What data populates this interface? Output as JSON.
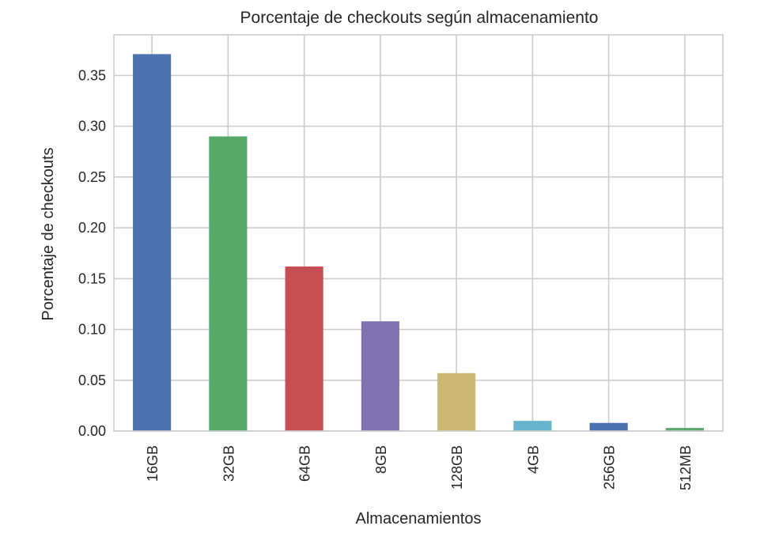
{
  "chart_data": {
    "type": "bar",
    "title": "Porcentaje de checkouts según almacenamiento",
    "xlabel": "Almacenamientos",
    "ylabel": "Porcentaje de checkouts",
    "categories": [
      "16GB",
      "32GB",
      "64GB",
      "8GB",
      "128GB",
      "4GB",
      "256GB",
      "512MB"
    ],
    "values": [
      0.371,
      0.29,
      0.162,
      0.108,
      0.057,
      0.01,
      0.008,
      0.003
    ],
    "colors": [
      "#4c72b0",
      "#55a868",
      "#c44e52",
      "#8172b2",
      "#ccb974",
      "#64b5cd",
      "#4c72b0",
      "#55a868"
    ],
    "ylim": [
      0,
      0.39
    ],
    "yticks": [
      0.0,
      0.05,
      0.1,
      0.15,
      0.2,
      0.25,
      0.3,
      0.35
    ],
    "ytick_labels": [
      "0.00",
      "0.05",
      "0.10",
      "0.15",
      "0.20",
      "0.25",
      "0.30",
      "0.35"
    ],
    "grid": true,
    "legend": "none"
  }
}
